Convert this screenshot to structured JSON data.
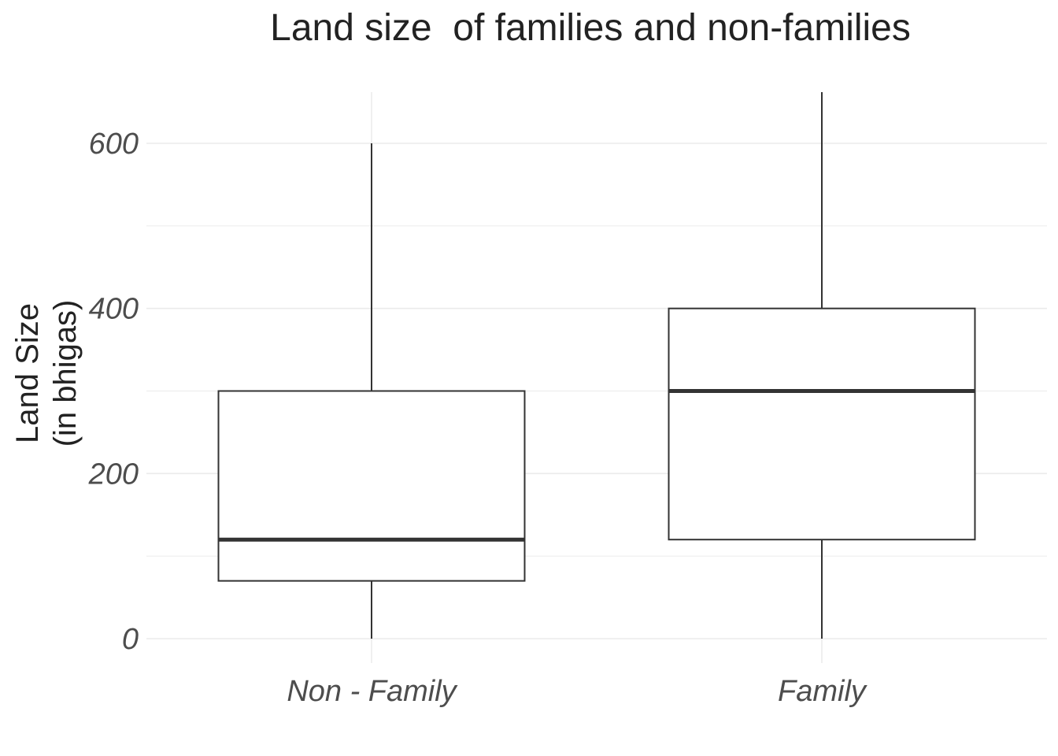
{
  "chart_data": {
    "type": "boxplot",
    "title": "Land size  of families and non-families",
    "xlabel": "",
    "ylabel_lines": [
      "Land Size",
      "(in bhigas)"
    ],
    "ylim": [
      -45,
      662
    ],
    "yticks": [
      0,
      200,
      400,
      600
    ],
    "y_minor_gridlines": [
      100,
      300,
      500
    ],
    "grid": true,
    "legend": "none",
    "categories": [
      "Non - Family",
      "Family"
    ],
    "boxes": [
      {
        "category": "Non - Family",
        "min": 0,
        "q1": 70,
        "median": 120,
        "q3": 300,
        "max": 600
      },
      {
        "category": "Family",
        "min": 0,
        "q1": 120,
        "median": 300,
        "q3": 400,
        "max": 662
      }
    ],
    "colors": {
      "box_fill": "#ffffff",
      "box_stroke": "#333333",
      "gridline": "#ebebeb"
    }
  }
}
